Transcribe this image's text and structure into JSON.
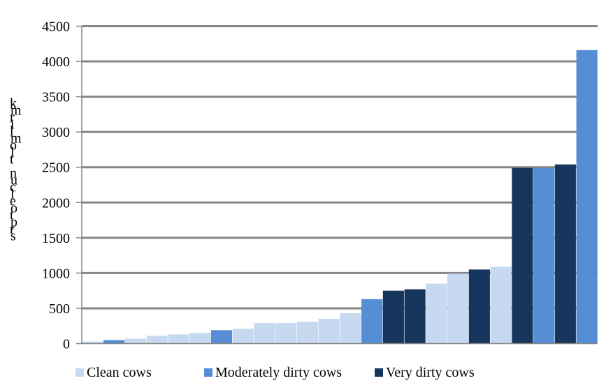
{
  "chart_data": {
    "type": "bar",
    "title": "",
    "xlabel": "",
    "ylabel": "kmrilmolt nucleotprs",
    "ylim": [
      0,
      4500
    ],
    "yticks": [
      0,
      500,
      1000,
      1500,
      2000,
      2500,
      3000,
      3500,
      4000,
      4500
    ],
    "grid": true,
    "legend_position": "bottom",
    "series": [
      {
        "name": "Clean cows",
        "color": "#c6d9f1"
      },
      {
        "name": "Moderately dirty cows",
        "color": "#558ed5"
      },
      {
        "name": "Very dirty cows",
        "color": "#17365d"
      }
    ],
    "bars": [
      {
        "series": 0,
        "value": 30
      },
      {
        "series": 1,
        "value": 50
      },
      {
        "series": 0,
        "value": 70
      },
      {
        "series": 0,
        "value": 110
      },
      {
        "series": 0,
        "value": 130
      },
      {
        "series": 0,
        "value": 150
      },
      {
        "series": 1,
        "value": 190
      },
      {
        "series": 0,
        "value": 210
      },
      {
        "series": 0,
        "value": 290
      },
      {
        "series": 0,
        "value": 290
      },
      {
        "series": 0,
        "value": 310
      },
      {
        "series": 0,
        "value": 350
      },
      {
        "series": 0,
        "value": 430
      },
      {
        "series": 1,
        "value": 630
      },
      {
        "series": 2,
        "value": 750
      },
      {
        "series": 2,
        "value": 770
      },
      {
        "series": 0,
        "value": 850
      },
      {
        "series": 0,
        "value": 990
      },
      {
        "series": 2,
        "value": 1050
      },
      {
        "series": 0,
        "value": 1090
      },
      {
        "series": 2,
        "value": 2490
      },
      {
        "series": 1,
        "value": 2490
      },
      {
        "series": 2,
        "value": 2540
      },
      {
        "series": 1,
        "value": 4160
      }
    ]
  }
}
